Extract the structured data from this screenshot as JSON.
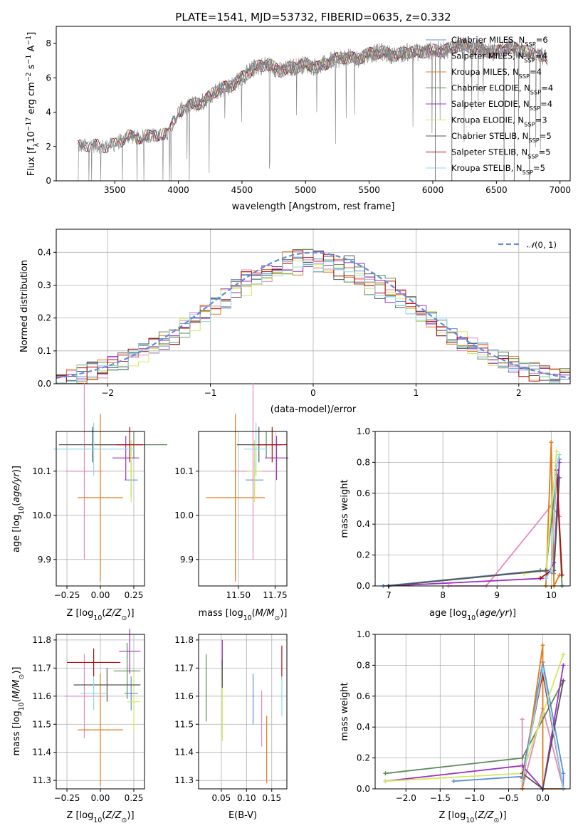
{
  "figure": {
    "title": "PLATE=1541, MJD=53732, FIBERID=0635, z=0.332"
  },
  "colors": {
    "Chabrier MILES": "#5b8fd9",
    "Salpeter MILES": "#e58abf",
    "Kroupa MILES": "#e07b1a",
    "Chabrier ELODIE": "#5a8a5a",
    "Salpeter ELODIE": "#9b30c0",
    "Kroupa ELODIE": "#d4e85a",
    "Chabrier STELIB": "#555555",
    "Salpeter STELIB": "#b01010",
    "Kroupa STELIB": "#8fd8e8",
    "observed": "#808080",
    "gaussian": "#5b8fd9"
  },
  "chart_data": [
    {
      "type": "line",
      "title": "PLATE=1541, MJD=53732, FIBERID=0635, z=0.332",
      "xlabel": "wavelength [Angstrom, rest frame]",
      "ylabel": "Flux [f_λ10^-17 erg cm^-2 s^-1 A^-1]",
      "xlim": [
        3040,
        7080
      ],
      "ylim": [
        0,
        9
      ],
      "xticks": [
        3500,
        4000,
        4500,
        5000,
        5500,
        6000,
        6500,
        7000
      ],
      "yticks": [
        0,
        2,
        4,
        6,
        8
      ],
      "legend_position": "upper-right",
      "legend": [
        {
          "label": "Chabrier MILES, N",
          "sub": "SSP",
          "tail": "=6"
        },
        {
          "label": "Salpeter MILES, N",
          "sub": "SSP",
          "tail": "=4"
        },
        {
          "label": "Kroupa MILES, N",
          "sub": "SSP",
          "tail": "=4"
        },
        {
          "label": "Chabrier ELODIE, N",
          "sub": "SSP",
          "tail": "=4"
        },
        {
          "label": "Salpeter ELODIE, N",
          "sub": "SSP",
          "tail": "=4"
        },
        {
          "label": "Kroupa ELODIE, N",
          "sub": "SSP",
          "tail": "=3"
        },
        {
          "label": "Chabrier STELIB, N",
          "sub": "SSP",
          "tail": "=5"
        },
        {
          "label": "Salpeter STELIB, N",
          "sub": "SSP",
          "tail": "=5"
        },
        {
          "label": "Kroupa STELIB, N",
          "sub": "SSP",
          "tail": "=5"
        }
      ],
      "spectrum_envelope": {
        "x": [
          3210,
          3300,
          3400,
          3500,
          3540,
          3600,
          3700,
          3800,
          3850,
          3920,
          3960,
          4000,
          4100,
          4200,
          4300,
          4400,
          4500,
          4600,
          4700,
          4800,
          4900,
          5000,
          5100,
          5200,
          5300,
          5400,
          5500,
          5600,
          5700,
          5800,
          5900,
          6000,
          6100,
          6200,
          6300,
          6400,
          6500,
          6600,
          6700,
          6800,
          6900
        ],
        "y": [
          2.0,
          2.1,
          2.0,
          2.1,
          2.3,
          2.6,
          2.5,
          2.7,
          2.6,
          2.8,
          3.4,
          4.0,
          4.4,
          4.6,
          5.3,
          5.5,
          6.0,
          6.6,
          6.8,
          6.4,
          6.6,
          6.8,
          6.6,
          7.0,
          7.2,
          7.1,
          7.4,
          7.5,
          7.3,
          7.5,
          7.5,
          7.6,
          7.6,
          7.9,
          7.8,
          7.6,
          7.5,
          7.8,
          7.6,
          7.4,
          7.1
        ]
      }
    },
    {
      "type": "histogram",
      "xlabel": "(data-model)/error",
      "ylabel": "Normed distribution",
      "xlim": [
        -2.5,
        2.5
      ],
      "ylim": [
        0,
        0.47
      ],
      "xticks": [
        -2,
        -1,
        0,
        1,
        2
      ],
      "yticks": [
        0.0,
        0.1,
        0.2,
        0.3,
        0.4
      ],
      "legend_position": "upper-right",
      "reference_curve": {
        "name": "N(0,1)",
        "mean": 0,
        "sigma": 1,
        "peak": 0.399
      },
      "bin_width": 0.1,
      "bin_range": [
        -2.5,
        2.5
      ]
    },
    {
      "type": "errorbar",
      "xlabel": "Z [log10(Z/Z⊙)]",
      "ylabel": "age  [log10(age/yr)]",
      "xlim": [
        -0.33,
        0.33
      ],
      "ylim": [
        9.84,
        10.19
      ],
      "xticks": [
        -0.25,
        0.0,
        0.25
      ],
      "yticks": [
        9.9,
        10.0,
        10.1
      ],
      "points": [
        {
          "model": "Chabrier MILES",
          "x": 0.23,
          "y": 10.08,
          "xerr": 0.05,
          "yerr": 0.04
        },
        {
          "model": "Salpeter MILES",
          "x": -0.12,
          "y": 10.1,
          "xerr": 0.14,
          "yerr": 0.2
        },
        {
          "model": "Kroupa MILES",
          "x": 0.0,
          "y": 10.04,
          "xerr": 0.17,
          "yerr": 0.19
        },
        {
          "model": "Chabrier ELODIE",
          "x": 0.25,
          "y": 10.16,
          "xerr": 0.25,
          "yerr": 0.03
        },
        {
          "model": "Salpeter ELODIE",
          "x": 0.19,
          "y": 10.13,
          "xerr": 0.1,
          "yerr": 0.05
        },
        {
          "model": "Kroupa ELODIE",
          "x": 0.23,
          "y": 10.1,
          "xerr": 0.04,
          "yerr": 0.07
        },
        {
          "model": "Chabrier STELIB",
          "x": -0.06,
          "y": 10.16,
          "xerr": 0.25,
          "yerr": 0.04
        },
        {
          "model": "Salpeter STELIB",
          "x": 0.22,
          "y": 10.16,
          "xerr": 0.1,
          "yerr": 0.04
        },
        {
          "model": "Kroupa STELIB",
          "x": -0.05,
          "y": 10.15,
          "xerr": 0.3,
          "yerr": 0.06
        }
      ]
    },
    {
      "type": "errorbar",
      "xlabel": "mass [log10(M/M⊙)]",
      "ylabel": "",
      "xlim": [
        11.23,
        11.83
      ],
      "ylim": [
        9.84,
        10.19
      ],
      "xticks": [
        11.5,
        11.75
      ],
      "yticks": [
        9.9,
        10.0,
        10.1
      ],
      "points": [
        {
          "model": "Chabrier MILES",
          "x": 11.61,
          "y": 10.08,
          "xerr": 0.06,
          "yerr": 0.04
        },
        {
          "model": "Salpeter MILES",
          "x": 11.6,
          "y": 10.1,
          "xerr": 0.15,
          "yerr": 0.2
        },
        {
          "model": "Kroupa MILES",
          "x": 11.48,
          "y": 10.04,
          "xerr": 0.2,
          "yerr": 0.19
        },
        {
          "model": "Chabrier ELODIE",
          "x": 11.69,
          "y": 10.16,
          "xerr": 0.1,
          "yerr": 0.03
        },
        {
          "model": "Salpeter ELODIE",
          "x": 11.76,
          "y": 10.13,
          "xerr": 0.08,
          "yerr": 0.05
        },
        {
          "model": "Kroupa ELODIE",
          "x": 11.61,
          "y": 10.1,
          "xerr": 0.05,
          "yerr": 0.07
        },
        {
          "model": "Chabrier STELIB",
          "x": 11.64,
          "y": 10.16,
          "xerr": 0.15,
          "yerr": 0.04
        },
        {
          "model": "Salpeter STELIB",
          "x": 11.73,
          "y": 10.16,
          "xerr": 0.1,
          "yerr": 0.04
        },
        {
          "model": "Kroupa STELIB",
          "x": 11.62,
          "y": 10.15,
          "xerr": 0.08,
          "yerr": 0.06
        }
      ]
    },
    {
      "type": "line",
      "xlabel": "age  [log10(age/yr)]",
      "ylabel": "mass weight",
      "xlim": [
        6.75,
        10.35
      ],
      "ylim": [
        0,
        1.0
      ],
      "xticks": [
        7,
        8,
        9,
        10
      ],
      "yticks": [
        0.0,
        0.2,
        0.4,
        0.6,
        0.8,
        1.0
      ],
      "series": [
        {
          "name": "Chabrier MILES",
          "x": [
            6.9,
            9.8,
            10.05,
            10.15
          ],
          "y": [
            0.0,
            0.1,
            0.08,
            0.82
          ]
        },
        {
          "name": "Salpeter MILES",
          "x": [
            8.1,
            8.8,
            10.0,
            10.15
          ],
          "y": [
            0.0,
            0.0,
            0.52,
            0.45
          ]
        },
        {
          "name": "Kroupa MILES",
          "x": [
            9.9,
            10.0,
            10.05,
            10.15
          ],
          "y": [
            0.0,
            0.93,
            0.0,
            0.07
          ]
        },
        {
          "name": "Chabrier ELODIE",
          "x": [
            7.0,
            9.9,
            10.1,
            10.2
          ],
          "y": [
            0.0,
            0.1,
            0.72,
            0.0
          ]
        },
        {
          "name": "Salpeter ELODIE",
          "x": [
            7.0,
            9.9,
            10.05,
            10.15
          ],
          "y": [
            0.0,
            0.05,
            0.15,
            0.8
          ]
        },
        {
          "name": "Kroupa ELODIE",
          "x": [
            9.5,
            9.9,
            10.1
          ],
          "y": [
            0.08,
            0.1,
            0.87
          ]
        },
        {
          "name": "Chabrier STELIB",
          "x": [
            7.0,
            9.9,
            10.05,
            10.15
          ],
          "y": [
            0.0,
            0.1,
            0.1,
            0.7
          ]
        },
        {
          "name": "Salpeter STELIB",
          "x": [
            9.8,
            10.0,
            10.1,
            10.2
          ],
          "y": [
            0.05,
            0.1,
            0.75,
            0.07
          ]
        },
        {
          "name": "Kroupa STELIB",
          "x": [
            9.9,
            10.0,
            10.1,
            10.15
          ],
          "y": [
            0.05,
            0.1,
            0.78,
            0.85
          ]
        }
      ]
    },
    {
      "type": "errorbar",
      "xlabel": "Z [log10(Z/Z⊙)]",
      "ylabel": "mass [log10(M/M⊙)]",
      "xlim": [
        -0.33,
        0.33
      ],
      "ylim": [
        11.27,
        11.82
      ],
      "xticks": [
        -0.25,
        0.0,
        0.25
      ],
      "yticks": [
        11.3,
        11.4,
        11.5,
        11.6,
        11.7,
        11.8
      ],
      "points": [
        {
          "model": "Chabrier MILES",
          "x": 0.23,
          "y": 11.61,
          "xerr": 0.05,
          "yerr": 0.06
        },
        {
          "model": "Salpeter MILES",
          "x": -0.12,
          "y": 11.6,
          "xerr": 0.15,
          "yerr": 0.15
        },
        {
          "model": "Kroupa MILES",
          "x": 0.0,
          "y": 11.48,
          "xerr": 0.17,
          "yerr": 0.2
        },
        {
          "model": "Chabrier ELODIE",
          "x": 0.2,
          "y": 11.69,
          "xerr": 0.1,
          "yerr": 0.1
        },
        {
          "model": "Salpeter ELODIE",
          "x": 0.22,
          "y": 11.76,
          "xerr": 0.08,
          "yerr": 0.08
        },
        {
          "model": "Kroupa ELODIE",
          "x": 0.25,
          "y": 11.58,
          "xerr": 0.05,
          "yerr": 0.1
        },
        {
          "model": "Chabrier STELIB",
          "x": 0.05,
          "y": 11.64,
          "xerr": 0.25,
          "yerr": 0.06
        },
        {
          "model": "Salpeter STELIB",
          "x": -0.05,
          "y": 11.72,
          "xerr": 0.2,
          "yerr": 0.05
        },
        {
          "model": "Kroupa STELIB",
          "x": -0.05,
          "y": 11.61,
          "xerr": 0.1,
          "yerr": 0.06
        }
      ]
    },
    {
      "type": "errorbar",
      "xlabel": "E(B-V)",
      "ylabel": "",
      "xlim": [
        0.005,
        0.18
      ],
      "ylim": [
        11.27,
        11.82
      ],
      "xticks": [
        0.05,
        0.1,
        0.15
      ],
      "yticks": [
        11.3,
        11.4,
        11.5,
        11.6,
        11.7,
        11.8
      ],
      "points": [
        {
          "model": "Chabrier MILES",
          "x": 0.113,
          "y": 11.59,
          "xerr": 0,
          "yerr": 0.09
        },
        {
          "model": "Salpeter MILES",
          "x": 0.13,
          "y": 11.52,
          "xerr": 0,
          "yerr": 0.1
        },
        {
          "model": "Kroupa MILES",
          "x": 0.14,
          "y": 11.41,
          "xerr": 0,
          "yerr": 0.12
        },
        {
          "model": "Chabrier ELODIE",
          "x": 0.02,
          "y": 11.63,
          "xerr": 0,
          "yerr": 0.12
        },
        {
          "model": "Salpeter ELODIE",
          "x": 0.052,
          "y": 11.73,
          "xerr": 0,
          "yerr": 0.07
        },
        {
          "model": "Kroupa ELODIE",
          "x": 0.052,
          "y": 11.57,
          "xerr": 0,
          "yerr": 0.13
        },
        {
          "model": "Chabrier STELIB",
          "x": 0.052,
          "y": 11.68,
          "xerr": 0,
          "yerr": 0.05
        },
        {
          "model": "Salpeter STELIB",
          "x": 0.17,
          "y": 11.72,
          "xerr": 0,
          "yerr": 0.06
        },
        {
          "model": "Kroupa STELIB",
          "x": 0.17,
          "y": 11.6,
          "xerr": 0,
          "yerr": 0.07
        }
      ]
    },
    {
      "type": "line",
      "xlabel": "Z [log10(Z/Z⊙)]",
      "ylabel": "mass weight",
      "xlim": [
        -2.45,
        0.4
      ],
      "ylim": [
        0,
        1.0
      ],
      "xticks": [
        -2.0,
        -1.5,
        -1.0,
        -0.5,
        0.0
      ],
      "yticks": [
        0.0,
        0.2,
        0.4,
        0.6,
        0.8,
        1.0
      ],
      "series": [
        {
          "name": "Chabrier MILES",
          "x": [
            -1.3,
            -0.3,
            0.0,
            0.3,
            0.3
          ],
          "y": [
            0.05,
            0.08,
            0.82,
            0.1,
            0.0
          ]
        },
        {
          "name": "Salpeter MILES",
          "x": [
            -0.3,
            -0.3,
            0.0,
            0.3
          ],
          "y": [
            0.45,
            0.0,
            0.52,
            0.0
          ]
        },
        {
          "name": "Kroupa MILES",
          "x": [
            -0.3,
            0.0,
            0.0,
            0.3
          ],
          "y": [
            0.0,
            0.93,
            0.0,
            0.0
          ]
        },
        {
          "name": "Chabrier ELODIE",
          "x": [
            -2.3,
            -0.3,
            0.3
          ],
          "y": [
            0.1,
            0.2,
            0.7
          ]
        },
        {
          "name": "Salpeter ELODIE",
          "x": [
            -2.3,
            -0.3,
            0.0,
            0.3
          ],
          "y": [
            0.05,
            0.15,
            0.0,
            0.8
          ]
        },
        {
          "name": "Kroupa ELODIE",
          "x": [
            -2.3,
            -0.3,
            0.3
          ],
          "y": [
            0.05,
            0.1,
            0.87
          ]
        },
        {
          "name": "Chabrier STELIB",
          "x": [
            -0.3,
            0.0,
            0.3
          ],
          "y": [
            0.1,
            0.0,
            0.7
          ]
        },
        {
          "name": "Salpeter STELIB",
          "x": [
            -0.3,
            0.0,
            0.3
          ],
          "y": [
            0.07,
            0.75,
            0.0
          ]
        },
        {
          "name": "Kroupa STELIB",
          "x": [
            -0.3,
            0.0,
            0.3
          ],
          "y": [
            0.05,
            0.78,
            0.0
          ]
        }
      ]
    }
  ]
}
